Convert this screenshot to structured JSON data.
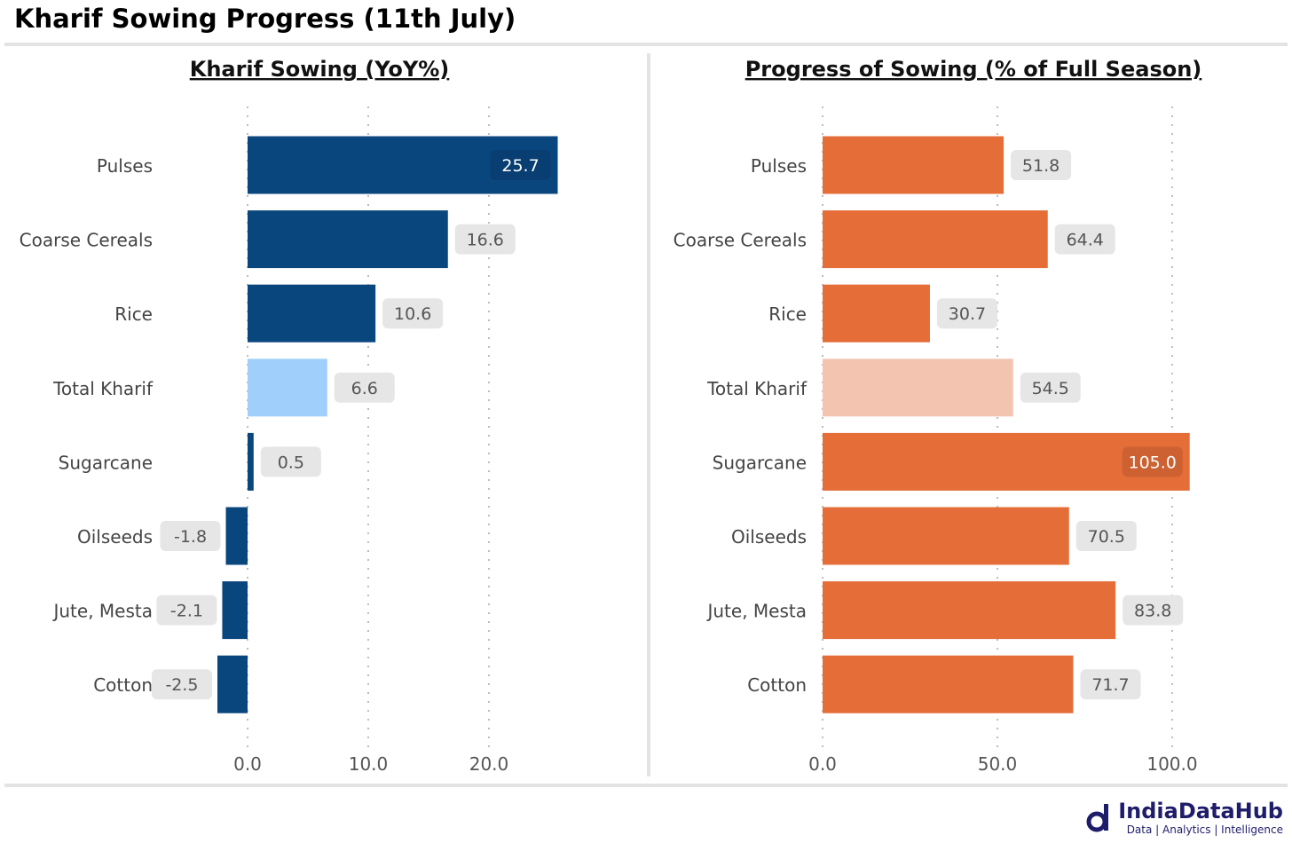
{
  "title": "Kharif Sowing Progress (11th July)",
  "logo": {
    "name": "IndiaDataHub",
    "tagline": "Data | Analytics | Intelligence"
  },
  "colors": {
    "left_bar": "#0a467e",
    "left_highlight": "#a0cffb",
    "right_bar": "#e56d38",
    "right_highlight": "#f3c4af",
    "label_bg": "#e6e6e6",
    "grid": "#bdbdbd"
  },
  "chart_data": [
    {
      "type": "bar",
      "orientation": "horizontal",
      "title": "Kharif Sowing (YoY%)",
      "categories": [
        "Pulses",
        "Coarse Cereals",
        "Rice",
        "Total Kharif",
        "Sugarcane",
        "Oilseeds",
        "Jute, Mesta",
        "Cotton"
      ],
      "values": [
        25.7,
        16.6,
        10.6,
        6.6,
        0.5,
        -1.8,
        -2.1,
        -2.5
      ],
      "highlight": "Total Kharif",
      "xticks": [
        0,
        10,
        20
      ],
      "tick_labels": [
        "0.0",
        "10.0",
        "20.0"
      ],
      "xlim": [
        -2.5,
        25.7
      ],
      "grid": "vertical dotted"
    },
    {
      "type": "bar",
      "orientation": "horizontal",
      "title": "Progress of Sowing (% of Full Season)",
      "categories": [
        "Pulses",
        "Coarse Cereals",
        "Rice",
        "Total Kharif",
        "Sugarcane",
        "Oilseeds",
        "Jute, Mesta",
        "Cotton"
      ],
      "values": [
        51.8,
        64.4,
        30.7,
        54.5,
        105.0,
        70.5,
        83.8,
        71.7
      ],
      "highlight": "Total Kharif",
      "xticks": [
        0,
        50,
        100
      ],
      "tick_labels": [
        "0.0",
        "50.0",
        "100.0"
      ],
      "xlim": [
        0,
        105
      ],
      "grid": "vertical dotted"
    }
  ]
}
